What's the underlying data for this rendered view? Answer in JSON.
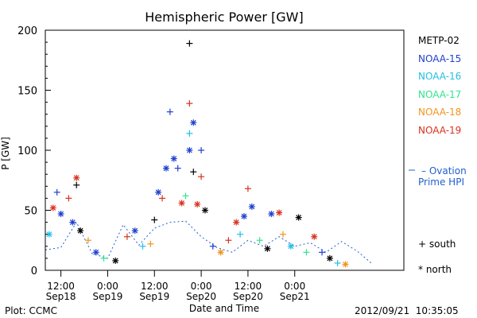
{
  "chart_data": {
    "type": "scatter",
    "title": "Hemispheric Power [GW]",
    "ylabel": "P [GW]",
    "xlabel": "Date and Time",
    "ylim": [
      0,
      200
    ],
    "yticks": [
      0,
      50,
      100,
      150,
      200
    ],
    "xlim": [
      "2012-09-18 08:00",
      "2012-09-22 04:00"
    ],
    "xticks": [
      {
        "time": "2012-09-18 12:00",
        "label": "12:00",
        "sublabel": "Sep18"
      },
      {
        "time": "2012-09-19 00:00",
        "label": "0:00",
        "sublabel": "Sep19"
      },
      {
        "time": "2012-09-19 12:00",
        "label": "12:00",
        "sublabel": "Sep19"
      },
      {
        "time": "2012-09-20 00:00",
        "label": "0:00",
        "sublabel": "Sep20"
      },
      {
        "time": "2012-09-20 12:00",
        "label": "12:00",
        "sublabel": "Sep20"
      },
      {
        "time": "2012-09-21 00:00",
        "label": "0:00",
        "sublabel": "Sep21"
      }
    ],
    "series": [
      {
        "name": "METP-02",
        "color": "#000000"
      },
      {
        "name": "NOAA-15",
        "color": "#1f3fcf"
      },
      {
        "name": "NOAA-16",
        "color": "#22bfe6"
      },
      {
        "name": "NOAA-17",
        "color": "#2ee68c"
      },
      {
        "name": "NOAA-18",
        "color": "#f0961e"
      },
      {
        "name": "NOAA-19",
        "color": "#d8321e"
      }
    ],
    "points": [
      {
        "t": "2012-09-18 09:00",
        "v": 30,
        "s": 2,
        "m": "*"
      },
      {
        "t": "2012-09-18 10:00",
        "v": 52,
        "s": 5,
        "m": "*"
      },
      {
        "t": "2012-09-18 11:00",
        "v": 65,
        "s": 1,
        "m": "+"
      },
      {
        "t": "2012-09-18 12:00",
        "v": 47,
        "s": 1,
        "m": "*"
      },
      {
        "t": "2012-09-18 14:00",
        "v": 60,
        "s": 5,
        "m": "+"
      },
      {
        "t": "2012-09-18 16:00",
        "v": 77,
        "s": 5,
        "m": "*"
      },
      {
        "t": "2012-09-18 16:00",
        "v": 71,
        "s": 0,
        "m": "+"
      },
      {
        "t": "2012-09-18 15:00",
        "v": 40,
        "s": 1,
        "m": "*"
      },
      {
        "t": "2012-09-18 17:00",
        "v": 33,
        "s": 0,
        "m": "*"
      },
      {
        "t": "2012-09-18 19:00",
        "v": 25,
        "s": 4,
        "m": "+"
      },
      {
        "t": "2012-09-18 21:00",
        "v": 15,
        "s": 1,
        "m": "*"
      },
      {
        "t": "2012-09-18 23:00",
        "v": 10,
        "s": 3,
        "m": "+"
      },
      {
        "t": "2012-09-19 02:00",
        "v": 8,
        "s": 0,
        "m": "*"
      },
      {
        "t": "2012-09-19 05:00",
        "v": 28,
        "s": 5,
        "m": "+"
      },
      {
        "t": "2012-09-19 07:00",
        "v": 33,
        "s": 1,
        "m": "*"
      },
      {
        "t": "2012-09-19 09:00",
        "v": 20,
        "s": 2,
        "m": "+"
      },
      {
        "t": "2012-09-19 11:00",
        "v": 22,
        "s": 4,
        "m": "+"
      },
      {
        "t": "2012-09-19 12:00",
        "v": 42,
        "s": 0,
        "m": "+"
      },
      {
        "t": "2012-09-19 13:00",
        "v": 65,
        "s": 1,
        "m": "*"
      },
      {
        "t": "2012-09-19 14:00",
        "v": 60,
        "s": 5,
        "m": "+"
      },
      {
        "t": "2012-09-19 15:00",
        "v": 85,
        "s": 1,
        "m": "*"
      },
      {
        "t": "2012-09-19 16:00",
        "v": 132,
        "s": 1,
        "m": "+"
      },
      {
        "t": "2012-09-19 17:00",
        "v": 93,
        "s": 1,
        "m": "*"
      },
      {
        "t": "2012-09-19 18:00",
        "v": 85,
        "s": 1,
        "m": "+"
      },
      {
        "t": "2012-09-19 19:00",
        "v": 56,
        "s": 5,
        "m": "*"
      },
      {
        "t": "2012-09-19 20:00",
        "v": 62,
        "s": 3,
        "m": "+"
      },
      {
        "t": "2012-09-19 21:00",
        "v": 189,
        "s": 0,
        "m": "+"
      },
      {
        "t": "2012-09-19 21:00",
        "v": 139,
        "s": 5,
        "m": "+"
      },
      {
        "t": "2012-09-19 21:00",
        "v": 114,
        "s": 2,
        "m": "+"
      },
      {
        "t": "2012-09-19 21:00",
        "v": 100,
        "s": 1,
        "m": "*"
      },
      {
        "t": "2012-09-19 22:00",
        "v": 123,
        "s": 1,
        "m": "*"
      },
      {
        "t": "2012-09-19 22:00",
        "v": 82,
        "s": 0,
        "m": "+"
      },
      {
        "t": "2012-09-19 23:00",
        "v": 55,
        "s": 5,
        "m": "*"
      },
      {
        "t": "2012-09-20 00:00",
        "v": 78,
        "s": 5,
        "m": "+"
      },
      {
        "t": "2012-09-20 00:00",
        "v": 100,
        "s": 1,
        "m": "+"
      },
      {
        "t": "2012-09-20 01:00",
        "v": 50,
        "s": 0,
        "m": "*"
      },
      {
        "t": "2012-09-20 03:00",
        "v": 20,
        "s": 1,
        "m": "+"
      },
      {
        "t": "2012-09-20 05:00",
        "v": 15,
        "s": 4,
        "m": "*"
      },
      {
        "t": "2012-09-20 07:00",
        "v": 25,
        "s": 5,
        "m": "+"
      },
      {
        "t": "2012-09-20 09:00",
        "v": 40,
        "s": 5,
        "m": "*"
      },
      {
        "t": "2012-09-20 10:00",
        "v": 30,
        "s": 2,
        "m": "+"
      },
      {
        "t": "2012-09-20 11:00",
        "v": 45,
        "s": 1,
        "m": "*"
      },
      {
        "t": "2012-09-20 12:00",
        "v": 68,
        "s": 5,
        "m": "+"
      },
      {
        "t": "2012-09-20 13:00",
        "v": 53,
        "s": 1,
        "m": "*"
      },
      {
        "t": "2012-09-20 15:00",
        "v": 25,
        "s": 3,
        "m": "+"
      },
      {
        "t": "2012-09-20 17:00",
        "v": 18,
        "s": 0,
        "m": "*"
      },
      {
        "t": "2012-09-20 18:00",
        "v": 47,
        "s": 1,
        "m": "*"
      },
      {
        "t": "2012-09-20 20:00",
        "v": 48,
        "s": 5,
        "m": "*"
      },
      {
        "t": "2012-09-20 21:00",
        "v": 30,
        "s": 4,
        "m": "+"
      },
      {
        "t": "2012-09-20 23:00",
        "v": 20,
        "s": 2,
        "m": "*"
      },
      {
        "t": "2012-09-21 01:00",
        "v": 44,
        "s": 0,
        "m": "*"
      },
      {
        "t": "2012-09-21 03:00",
        "v": 15,
        "s": 3,
        "m": "+"
      },
      {
        "t": "2012-09-21 05:00",
        "v": 28,
        "s": 5,
        "m": "*"
      },
      {
        "t": "2012-09-21 07:00",
        "v": 15,
        "s": 1,
        "m": "+"
      },
      {
        "t": "2012-09-21 09:00",
        "v": 10,
        "s": 0,
        "m": "*"
      },
      {
        "t": "2012-09-21 11:00",
        "v": 6,
        "s": 2,
        "m": "+"
      },
      {
        "t": "2012-09-21 13:00",
        "v": 5,
        "s": 4,
        "m": "*"
      }
    ],
    "ovation": {
      "name": "Ovation Prime HPI",
      "color": "#1f5fcf",
      "points": [
        {
          "t": "2012-09-18 08:00",
          "v": 17
        },
        {
          "t": "2012-09-18 12:00",
          "v": 19
        },
        {
          "t": "2012-09-18 16:00",
          "v": 40
        },
        {
          "t": "2012-09-18 20:00",
          "v": 14
        },
        {
          "t": "2012-09-19 00:00",
          "v": 10
        },
        {
          "t": "2012-09-19 04:00",
          "v": 38
        },
        {
          "t": "2012-09-19 08:00",
          "v": 21
        },
        {
          "t": "2012-09-19 12:00",
          "v": 35
        },
        {
          "t": "2012-09-19 16:00",
          "v": 40
        },
        {
          "t": "2012-09-19 20:00",
          "v": 41
        },
        {
          "t": "2012-09-20 00:00",
          "v": 28
        },
        {
          "t": "2012-09-20 04:00",
          "v": 19
        },
        {
          "t": "2012-09-20 08:00",
          "v": 15
        },
        {
          "t": "2012-09-20 12:00",
          "v": 25
        },
        {
          "t": "2012-09-20 16:00",
          "v": 20
        },
        {
          "t": "2012-09-20 20:00",
          "v": 28
        },
        {
          "t": "2012-09-21 00:00",
          "v": 20
        },
        {
          "t": "2012-09-21 04:00",
          "v": 23
        },
        {
          "t": "2012-09-21 08:00",
          "v": 15
        },
        {
          "t": "2012-09-21 12:00",
          "v": 24
        },
        {
          "t": "2012-09-21 16:00",
          "v": 16
        },
        {
          "t": "2012-09-21 20:00",
          "v": 5
        }
      ]
    },
    "legend": {
      "placement": "right",
      "ovation_label": "– Ovation",
      "ovation_label2": "Prime HPI",
      "south_label": "+ south",
      "north_label": "* north"
    }
  },
  "footer": {
    "left": "Plot: CCMC",
    "right": "2012/09/21  10:35:05"
  }
}
